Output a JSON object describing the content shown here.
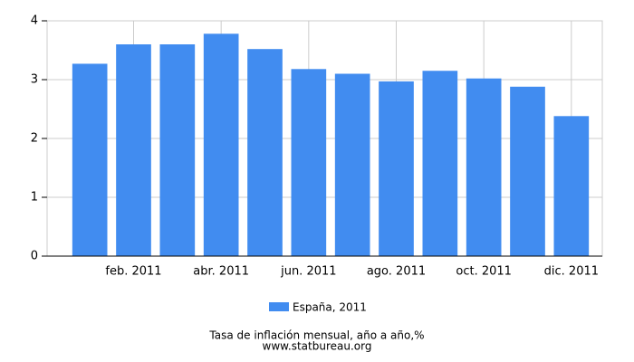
{
  "chart_data": {
    "type": "bar",
    "categories": [
      null,
      "feb. 2011",
      null,
      "abr. 2011",
      null,
      "jun. 2011",
      null,
      "ago. 2011",
      null,
      "oct. 2011",
      null,
      "dic. 2011"
    ],
    "series": [
      {
        "name": "España, 2011",
        "color": "#418cf0",
        "values": [
          3.27,
          3.6,
          3.6,
          3.78,
          3.52,
          3.18,
          3.1,
          2.97,
          3.15,
          3.02,
          2.88,
          2.38
        ]
      }
    ],
    "ylim": [
      0,
      4
    ],
    "yticks": [
      0,
      1,
      2,
      3,
      4
    ],
    "grid": true,
    "caption": "Tasa de inflación mensual, año a año,%",
    "source": "www.statbureau.org"
  }
}
